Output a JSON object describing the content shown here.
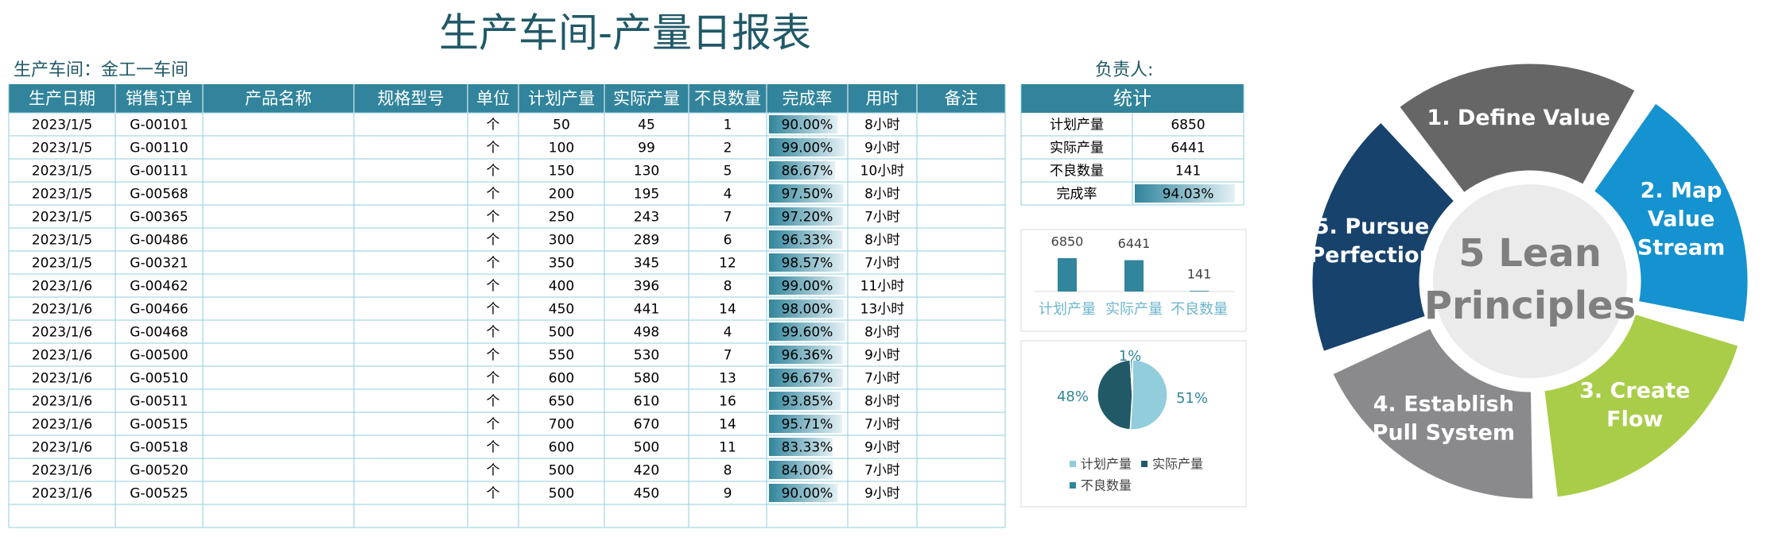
{
  "title": "生产车间-产量日报表",
  "workshop_label": "生产车间：金工一车间",
  "owner_label": "负责人:",
  "table": {
    "headers": [
      "生产日期",
      "销售订单",
      "产品名称",
      "规格型号",
      "单位",
      "计划产量",
      "实际产量",
      "不良数量",
      "完成率",
      "用时",
      "备注"
    ],
    "rows": [
      {
        "date": "2023/1/5",
        "order": "G-00101",
        "unit": "个",
        "plan": 50,
        "actual": 45,
        "defect": 1,
        "rate": 90.0,
        "rate_label": "90.00%",
        "hours": "8小时"
      },
      {
        "date": "2023/1/5",
        "order": "G-00110",
        "unit": "个",
        "plan": 100,
        "actual": 99,
        "defect": 2,
        "rate": 99.0,
        "rate_label": "99.00%",
        "hours": "9小时"
      },
      {
        "date": "2023/1/5",
        "order": "G-00111",
        "unit": "个",
        "plan": 150,
        "actual": 130,
        "defect": 5,
        "rate": 86.67,
        "rate_label": "86.67%",
        "hours": "10小时"
      },
      {
        "date": "2023/1/5",
        "order": "G-00568",
        "unit": "个",
        "plan": 200,
        "actual": 195,
        "defect": 4,
        "rate": 97.5,
        "rate_label": "97.50%",
        "hours": "8小时"
      },
      {
        "date": "2023/1/5",
        "order": "G-00365",
        "unit": "个",
        "plan": 250,
        "actual": 243,
        "defect": 7,
        "rate": 97.2,
        "rate_label": "97.20%",
        "hours": "7小时"
      },
      {
        "date": "2023/1/5",
        "order": "G-00486",
        "unit": "个",
        "plan": 300,
        "actual": 289,
        "defect": 6,
        "rate": 96.33,
        "rate_label": "96.33%",
        "hours": "8小时"
      },
      {
        "date": "2023/1/5",
        "order": "G-00321",
        "unit": "个",
        "plan": 350,
        "actual": 345,
        "defect": 12,
        "rate": 98.57,
        "rate_label": "98.57%",
        "hours": "7小时"
      },
      {
        "date": "2023/1/6",
        "order": "G-00462",
        "unit": "个",
        "plan": 400,
        "actual": 396,
        "defect": 8,
        "rate": 99.0,
        "rate_label": "99.00%",
        "hours": "11小时"
      },
      {
        "date": "2023/1/6",
        "order": "G-00466",
        "unit": "个",
        "plan": 450,
        "actual": 441,
        "defect": 14,
        "rate": 98.0,
        "rate_label": "98.00%",
        "hours": "13小时"
      },
      {
        "date": "2023/1/6",
        "order": "G-00468",
        "unit": "个",
        "plan": 500,
        "actual": 498,
        "defect": 4,
        "rate": 99.6,
        "rate_label": "99.60%",
        "hours": "8小时"
      },
      {
        "date": "2023/1/6",
        "order": "G-00500",
        "unit": "个",
        "plan": 550,
        "actual": 530,
        "defect": 7,
        "rate": 96.36,
        "rate_label": "96.36%",
        "hours": "9小时"
      },
      {
        "date": "2023/1/6",
        "order": "G-00510",
        "unit": "个",
        "plan": 600,
        "actual": 580,
        "defect": 13,
        "rate": 96.67,
        "rate_label": "96.67%",
        "hours": "7小时"
      },
      {
        "date": "2023/1/6",
        "order": "G-00511",
        "unit": "个",
        "plan": 650,
        "actual": 610,
        "defect": 16,
        "rate": 93.85,
        "rate_label": "93.85%",
        "hours": "8小时"
      },
      {
        "date": "2023/1/6",
        "order": "G-00515",
        "unit": "个",
        "plan": 700,
        "actual": 670,
        "defect": 14,
        "rate": 95.71,
        "rate_label": "95.71%",
        "hours": "7小时"
      },
      {
        "date": "2023/1/6",
        "order": "G-00518",
        "unit": "个",
        "plan": 600,
        "actual": 500,
        "defect": 11,
        "rate": 83.33,
        "rate_label": "83.33%",
        "hours": "9小时"
      },
      {
        "date": "2023/1/6",
        "order": "G-00520",
        "unit": "个",
        "plan": 500,
        "actual": 420,
        "defect": 8,
        "rate": 84.0,
        "rate_label": "84.00%",
        "hours": "7小时"
      },
      {
        "date": "2023/1/6",
        "order": "G-00525",
        "unit": "个",
        "plan": 500,
        "actual": 450,
        "defect": 9,
        "rate": 90.0,
        "rate_label": "90.00%",
        "hours": "9小时"
      }
    ]
  },
  "stats": {
    "title": "统计",
    "items": [
      {
        "label": "计划产量",
        "value": 6850
      },
      {
        "label": "实际产量",
        "value": 6441
      },
      {
        "label": "不良数量",
        "value": 141
      },
      {
        "label": "完成率",
        "value": 94.03,
        "value_label": "94.03%"
      }
    ]
  },
  "chart_data": [
    {
      "type": "bar",
      "categories": [
        "计划产量",
        "实际产量",
        "不良数量"
      ],
      "values": [
        6850,
        6441,
        141
      ],
      "color": "#31859c"
    },
    {
      "type": "pie",
      "categories": [
        "计划产量",
        "实际产量",
        "不良数量"
      ],
      "values": [
        51,
        48,
        1
      ],
      "value_labels": [
        "51%",
        "48%",
        "1%"
      ],
      "colors": [
        "#92cddc",
        "#215967",
        "#31859c"
      ]
    }
  ],
  "diagram": {
    "center": [
      "5 Lean",
      "Principles"
    ],
    "segments": [
      {
        "lines": [
          "1. Define Value"
        ],
        "color": "#666666"
      },
      {
        "lines": [
          "2. Map",
          "Value",
          "Stream"
        ],
        "color": "#1592d0"
      },
      {
        "lines": [
          "3. Create",
          "Flow"
        ],
        "color": "#a9cd48"
      },
      {
        "lines": [
          "4. Establish",
          "Pull System"
        ],
        "color": "#8a8a8c"
      },
      {
        "lines": [
          "5. Pursue",
          "Perfection"
        ],
        "color": "#17426c"
      }
    ]
  }
}
